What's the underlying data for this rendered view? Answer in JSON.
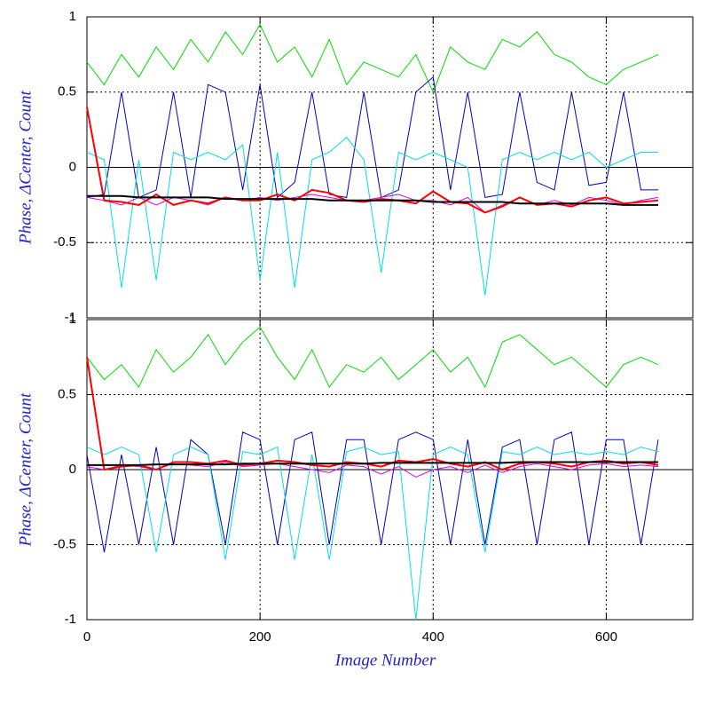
{
  "chart_data": [
    {
      "type": "line",
      "ylabel": "Phase, ΔCenter, Count",
      "x": [
        0,
        20,
        40,
        60,
        80,
        100,
        120,
        140,
        160,
        180,
        200,
        220,
        240,
        260,
        280,
        300,
        320,
        340,
        360,
        380,
        400,
        420,
        440,
        460,
        480,
        500,
        520,
        540,
        560,
        580,
        600,
        620,
        640,
        660
      ],
      "xlim": [
        0,
        700
      ],
      "xticks": [
        0,
        200,
        400,
        600
      ],
      "ylim": [
        -1,
        1
      ],
      "yticks": [
        -1,
        -0.5,
        0,
        0.5,
        1
      ],
      "grid": true,
      "series": [
        {
          "color": "#00dd00",
          "width": 1,
          "values": [
            0.7,
            0.55,
            0.75,
            0.6,
            0.8,
            0.65,
            0.85,
            0.7,
            0.9,
            0.75,
            0.95,
            0.7,
            0.8,
            0.6,
            0.85,
            0.55,
            0.7,
            0.65,
            0.6,
            0.75,
            0.5,
            0.8,
            0.7,
            0.65,
            0.85,
            0.8,
            0.9,
            0.75,
            0.7,
            0.6,
            0.55,
            0.65,
            0.7,
            0.75
          ]
        },
        {
          "color": "#0000c0",
          "width": 1,
          "values": [
            -0.2,
            -0.18,
            0.5,
            -0.2,
            -0.15,
            0.5,
            -0.2,
            0.55,
            0.5,
            -0.15,
            0.55,
            -0.2,
            -0.1,
            0.5,
            -0.18,
            -0.2,
            0.5,
            -0.2,
            -0.15,
            0.5,
            0.6,
            -0.15,
            0.5,
            -0.2,
            -0.18,
            0.5,
            -0.1,
            -0.15,
            0.5,
            -0.12,
            -0.1,
            0.5,
            -0.15,
            -0.15
          ]
        },
        {
          "color": "#00e0e0",
          "width": 1,
          "values": [
            0.1,
            0.05,
            -0.8,
            0.05,
            -0.75,
            0.1,
            0.05,
            0.1,
            0.05,
            0.15,
            -0.75,
            0.1,
            -0.8,
            0.05,
            0.1,
            0.2,
            0.05,
            -0.7,
            0.1,
            0.05,
            0.1,
            0.05,
            0,
            -0.85,
            0.05,
            0.1,
            0.05,
            0.1,
            0.05,
            0.1,
            0,
            0.05,
            0.1,
            0.1
          ]
        },
        {
          "color": "#e000e0",
          "width": 1,
          "values": [
            -0.2,
            -0.22,
            -0.25,
            -0.2,
            -0.25,
            -0.2,
            -0.22,
            -0.25,
            -0.2,
            -0.22,
            -0.2,
            -0.22,
            -0.2,
            -0.18,
            -0.2,
            -0.22,
            -0.22,
            -0.2,
            -0.18,
            -0.22,
            -0.22,
            -0.25,
            -0.2,
            -0.3,
            -0.25,
            -0.2,
            -0.25,
            -0.22,
            -0.25,
            -0.2,
            -0.22,
            -0.25,
            -0.22,
            -0.2
          ]
        },
        {
          "color": "#ff0000",
          "width": 2,
          "values": [
            0.4,
            -0.22,
            -0.23,
            -0.25,
            -0.18,
            -0.25,
            -0.22,
            -0.24,
            -0.2,
            -0.22,
            -0.22,
            -0.18,
            -0.22,
            -0.15,
            -0.17,
            -0.22,
            -0.23,
            -0.21,
            -0.22,
            -0.24,
            -0.16,
            -0.23,
            -0.24,
            -0.3,
            -0.26,
            -0.2,
            -0.25,
            -0.24,
            -0.26,
            -0.22,
            -0.2,
            -0.24,
            -0.23,
            -0.22
          ]
        },
        {
          "color": "#000000",
          "width": 2,
          "values": [
            -0.19,
            -0.19,
            -0.19,
            -0.2,
            -0.2,
            -0.2,
            -0.2,
            -0.2,
            -0.21,
            -0.21,
            -0.21,
            -0.21,
            -0.21,
            -0.21,
            -0.22,
            -0.22,
            -0.22,
            -0.22,
            -0.22,
            -0.22,
            -0.23,
            -0.23,
            -0.23,
            -0.23,
            -0.23,
            -0.24,
            -0.24,
            -0.24,
            -0.24,
            -0.24,
            -0.24,
            -0.25,
            -0.25,
            -0.25
          ]
        }
      ]
    },
    {
      "type": "line",
      "ylabel": "Phase, ΔCenter, Count",
      "xlabel": "Image Number",
      "x": [
        0,
        20,
        40,
        60,
        80,
        100,
        120,
        140,
        160,
        180,
        200,
        220,
        240,
        260,
        280,
        300,
        320,
        340,
        360,
        380,
        400,
        420,
        440,
        460,
        480,
        500,
        520,
        540,
        560,
        580,
        600,
        620,
        640,
        660
      ],
      "xlim": [
        0,
        700
      ],
      "xticks": [
        0,
        200,
        400,
        600
      ],
      "ylim": [
        -1,
        1
      ],
      "yticks": [
        -1,
        -0.5,
        0,
        0.5,
        1
      ],
      "grid": true,
      "series": [
        {
          "color": "#00dd00",
          "width": 1,
          "values": [
            0.75,
            0.6,
            0.7,
            0.55,
            0.8,
            0.65,
            0.75,
            0.9,
            0.7,
            0.85,
            0.95,
            0.75,
            0.6,
            0.8,
            0.55,
            0.7,
            0.65,
            0.75,
            0.6,
            0.7,
            0.8,
            0.65,
            0.75,
            0.55,
            0.85,
            0.9,
            0.8,
            0.7,
            0.75,
            0.65,
            0.55,
            0.7,
            0.75,
            0.7
          ]
        },
        {
          "color": "#0000c0",
          "width": 1,
          "values": [
            0.1,
            -0.55,
            0.1,
            -0.5,
            0.15,
            -0.5,
            0.2,
            0.1,
            -0.5,
            0.25,
            0.2,
            -0.5,
            0.2,
            0.25,
            -0.5,
            0.2,
            0.2,
            -0.5,
            0.2,
            0.25,
            0.2,
            -0.5,
            0.2,
            -0.5,
            0.15,
            0.2,
            -0.5,
            0.2,
            0.25,
            -0.5,
            0.2,
            0.2,
            -0.5,
            0.2
          ]
        },
        {
          "color": "#00e0e0",
          "width": 1,
          "values": [
            0.15,
            0.1,
            0.15,
            0.1,
            -0.55,
            0.1,
            0.15,
            0.1,
            -0.6,
            0.12,
            0.1,
            0.15,
            -0.6,
            0.1,
            -0.6,
            0.12,
            0.15,
            0.1,
            0.12,
            -1,
            0.1,
            0.15,
            0.1,
            -0.55,
            0.12,
            0.1,
            0.15,
            0.1,
            0.12,
            0.1,
            0.12,
            0.1,
            0.15,
            0.12
          ]
        },
        {
          "color": "#e000e0",
          "width": 1,
          "values": [
            0.02,
            0.0,
            0.03,
            0.02,
            0.0,
            0.04,
            0.03,
            0.02,
            0.05,
            0.02,
            0.03,
            0.04,
            0.02,
            0.0,
            -0.02,
            0.03,
            0.02,
            -0.03,
            0.02,
            -0.05,
            0.0,
            0.02,
            -0.02,
            0.03,
            -0.02,
            0.02,
            0.04,
            0.02,
            0.0,
            0.03,
            0.04,
            0.02,
            0.03,
            0.02
          ]
        },
        {
          "color": "#ff0000",
          "width": 2,
          "values": [
            0.75,
            0.0,
            0.02,
            0.03,
            0.0,
            0.05,
            0.05,
            0.04,
            0.06,
            0.03,
            0.04,
            0.06,
            0.05,
            0.03,
            0.02,
            0.05,
            0.04,
            0.02,
            0.06,
            0.05,
            0.07,
            0.04,
            0.02,
            0.05,
            0.0,
            0.04,
            0.05,
            0.04,
            0.02,
            0.05,
            0.06,
            0.04,
            0.05,
            0.03
          ]
        },
        {
          "color": "#000000",
          "width": 2,
          "values": [
            0.03,
            0.03,
            0.03,
            0.03,
            0.035,
            0.035,
            0.035,
            0.035,
            0.035,
            0.04,
            0.04,
            0.04,
            0.04,
            0.04,
            0.04,
            0.04,
            0.04,
            0.045,
            0.045,
            0.045,
            0.045,
            0.045,
            0.045,
            0.045,
            0.045,
            0.05,
            0.05,
            0.05,
            0.05,
            0.05,
            0.05,
            0.05,
            0.05,
            0.05
          ]
        }
      ]
    }
  ]
}
